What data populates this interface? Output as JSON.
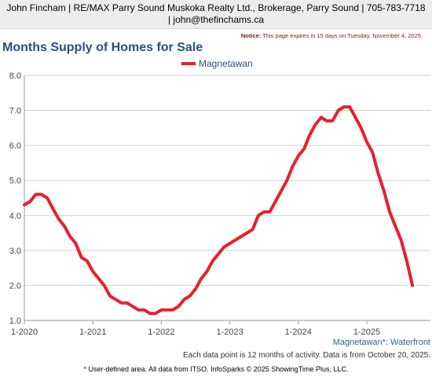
{
  "header": {
    "agent_line1": "John Fincham | RE/MAX Parry Sound Muskoka Realty Ltd., Brokerage, Parry Sound | 705-783-7718",
    "agent_line2": "| john@thefinchams.ca"
  },
  "notice": {
    "label": "Notice:",
    "text": "This page expires in 15 days on Tuesday, November 4, 2025."
  },
  "page_title": "Months Supply of Homes for Sale",
  "area_label": "Magnetawan*: Waterfront",
  "note": "Each data point is 12 months of activity. Data is from October 20, 2025.",
  "footer": "* User-defined area. All data from ITSO. InfoSparks © 2025 ShowingTime Plus, LLC.",
  "chart_data": {
    "type": "line",
    "title": "",
    "xlabel": "",
    "ylabel": "",
    "ylim": [
      1.0,
      8.0
    ],
    "yticks": [
      "1.0",
      "2.0",
      "3.0",
      "4.0",
      "5.0",
      "6.0",
      "7.0",
      "8.0"
    ],
    "xticks": [
      "1-2020",
      "1-2021",
      "1-2022",
      "1-2023",
      "1-2024",
      "1-2025"
    ],
    "legend_position": "top-center",
    "grid": true,
    "color": "#e8202a",
    "x_start": "2020-01",
    "series": [
      {
        "name": "Magnetawan",
        "values": [
          4.3,
          4.4,
          4.6,
          4.6,
          4.5,
          4.2,
          3.9,
          3.7,
          3.4,
          3.2,
          2.8,
          2.7,
          2.4,
          2.2,
          2.0,
          1.7,
          1.6,
          1.5,
          1.5,
          1.4,
          1.3,
          1.3,
          1.2,
          1.2,
          1.3,
          1.3,
          1.3,
          1.4,
          1.6,
          1.7,
          1.9,
          2.2,
          2.4,
          2.7,
          2.9,
          3.1,
          3.2,
          3.3,
          3.4,
          3.5,
          3.6,
          4.0,
          4.1,
          4.1,
          4.4,
          4.7,
          5.0,
          5.4,
          5.7,
          5.9,
          6.3,
          6.6,
          6.8,
          6.7,
          6.7,
          7.0,
          7.1,
          7.1,
          6.8,
          6.5,
          6.1,
          5.8,
          5.2,
          4.7,
          4.1,
          3.7,
          3.3,
          2.7,
          2.0
        ]
      }
    ]
  }
}
